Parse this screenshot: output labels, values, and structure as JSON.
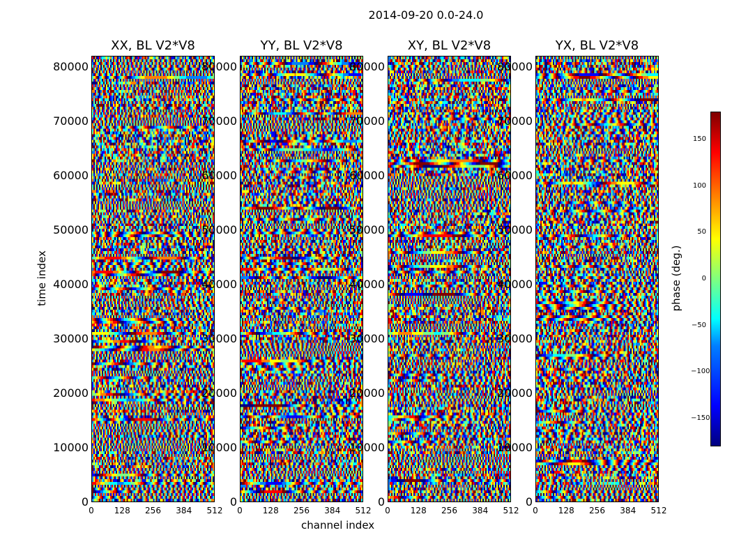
{
  "chart_data": {
    "type": "heatmap",
    "suptitle": "2014-09-20 0.0-24.0",
    "panels": [
      {
        "title": "XX, BL V2*V8",
        "seed": 11
      },
      {
        "title": "YY, BL V2*V8",
        "seed": 23
      },
      {
        "title": "XY, BL V2*V8",
        "seed": 37
      },
      {
        "title": "YX, BL V2*V8",
        "seed": 53
      }
    ],
    "xlabel": "channel index",
    "ylabel": "time index",
    "xlim": [
      0,
      512
    ],
    "ylim": [
      0,
      82000
    ],
    "xticks": [
      "0",
      "128",
      "256",
      "384",
      "512"
    ],
    "yticks": [
      "0",
      "10000",
      "20000",
      "30000",
      "40000",
      "50000",
      "60000",
      "70000",
      "80000"
    ],
    "colorbar": {
      "label": "phase (deg.)",
      "range": [
        -180,
        180
      ],
      "ticks": [
        "−150",
        "−100",
        "−50",
        "0",
        "50",
        "100",
        "150"
      ],
      "tick_values": [
        -150,
        -100,
        -50,
        0,
        50,
        100,
        150
      ]
    },
    "colormap": [
      "#00007f",
      "#0000ff",
      "#007fff",
      "#00ffff",
      "#7fff7f",
      "#ffff00",
      "#ff7f00",
      "#ff0000",
      "#7f0000"
    ]
  }
}
